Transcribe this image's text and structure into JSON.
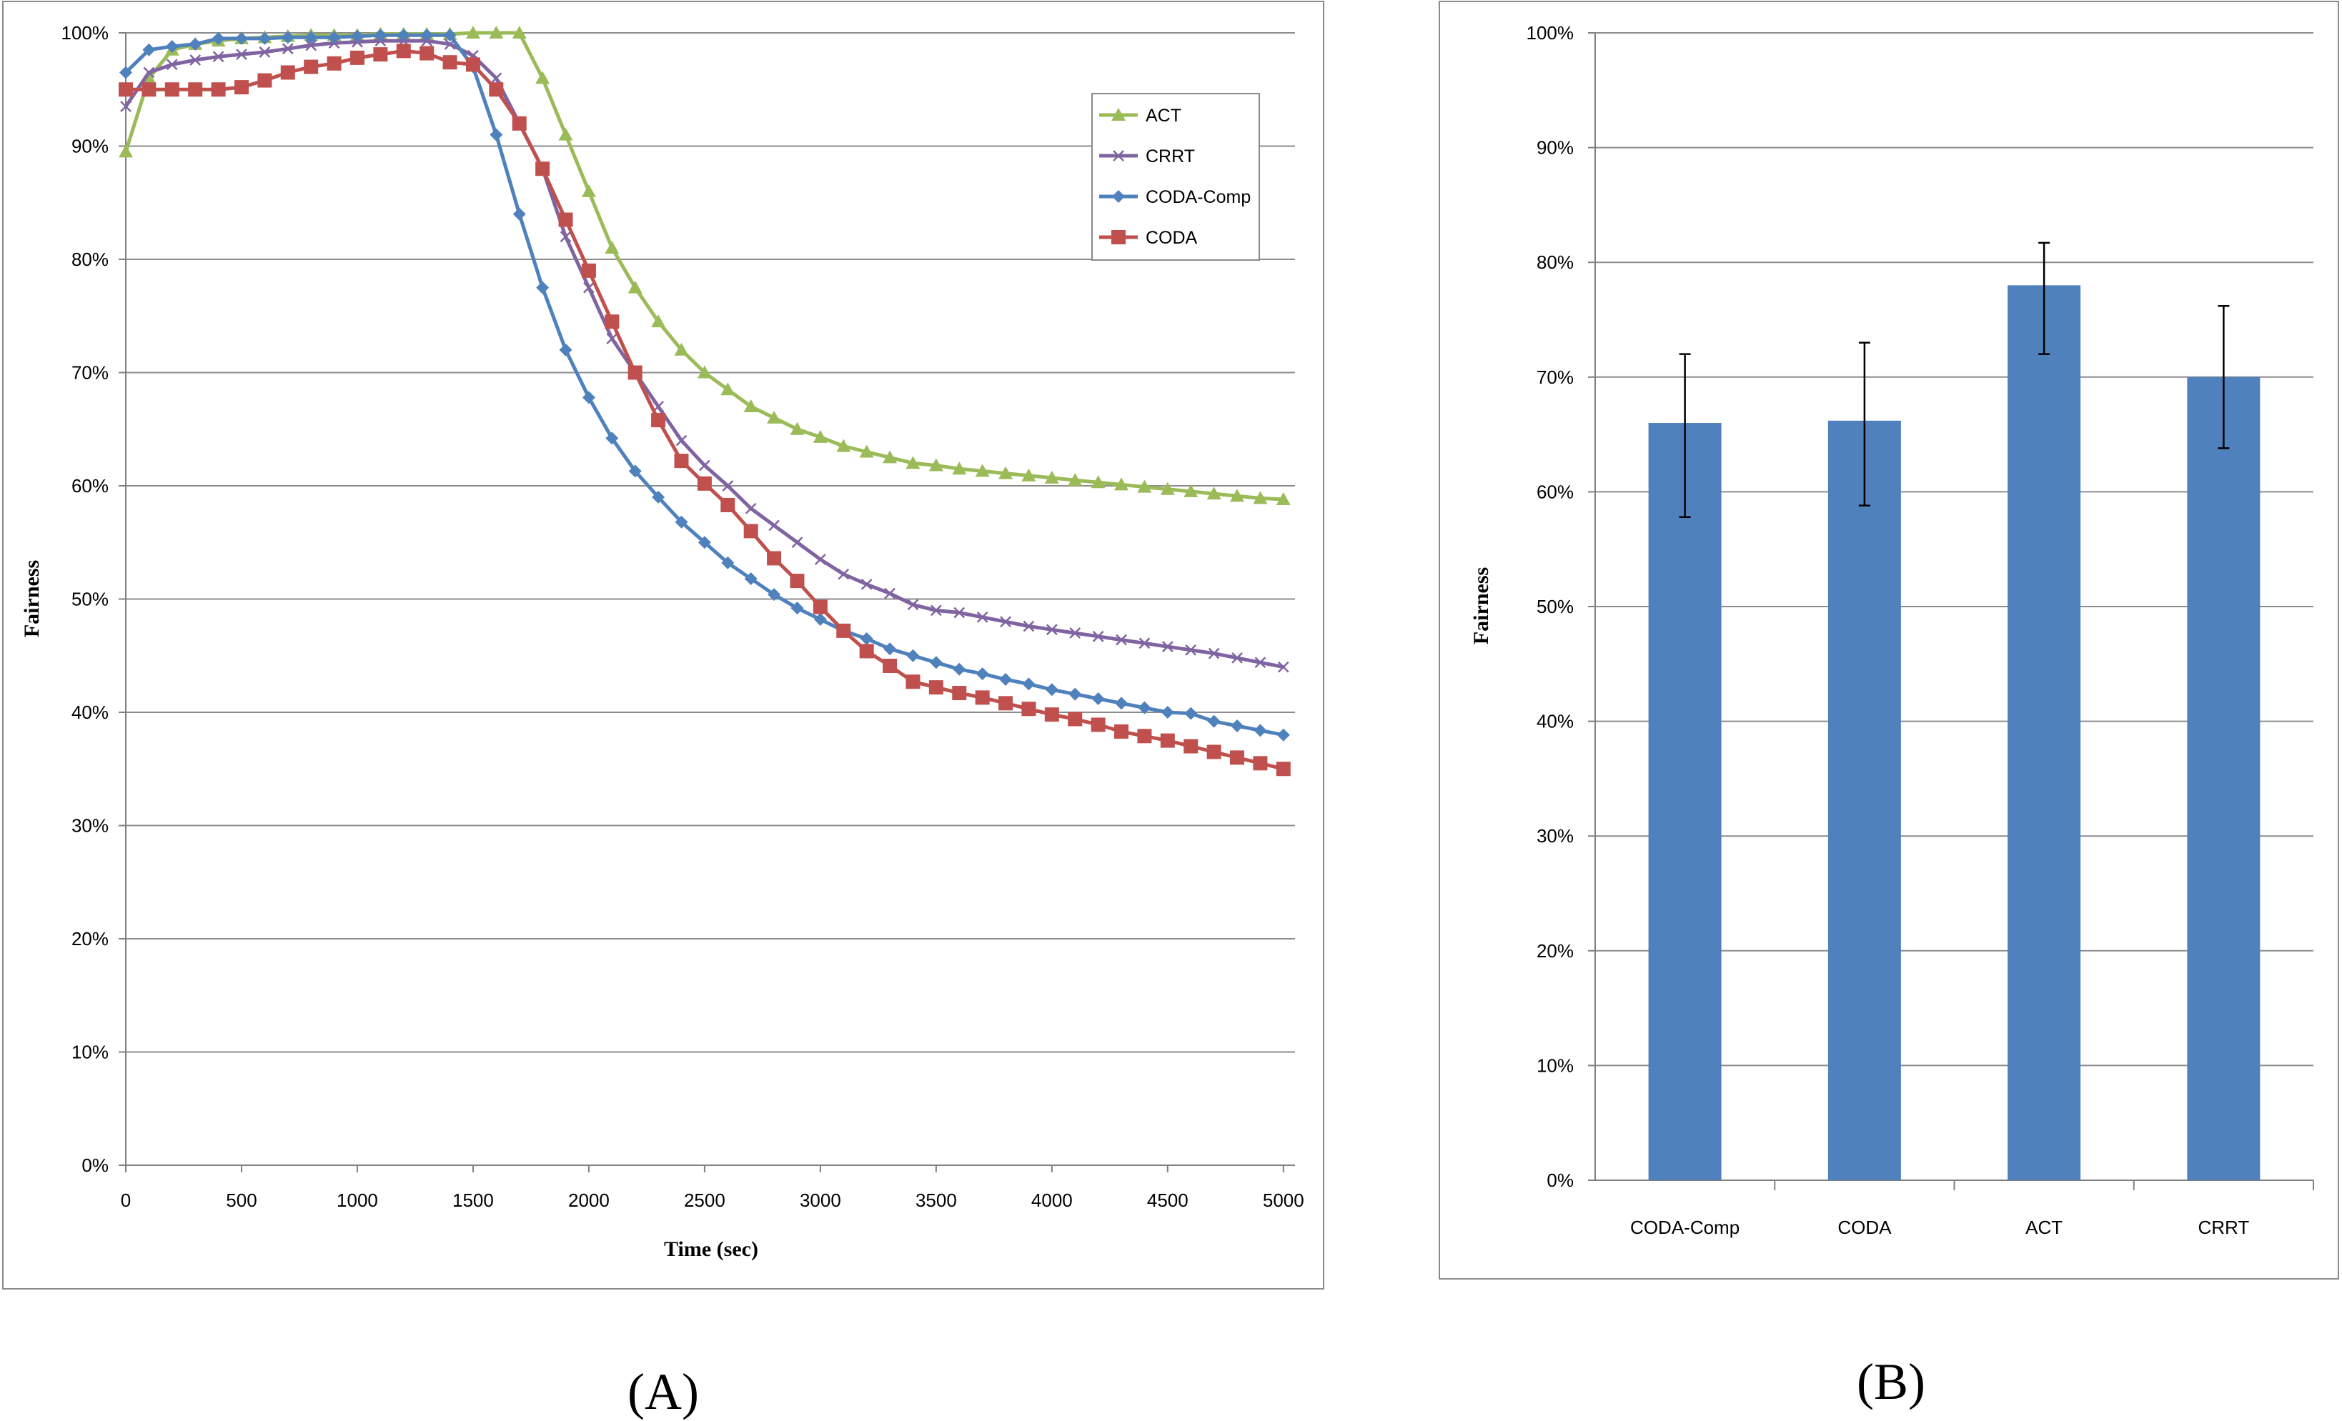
{
  "chart_data": [
    {
      "panel_label": "(A)",
      "type": "line",
      "title": "",
      "xlabel": "Time (sec)",
      "ylabel": "Fairness",
      "xlim": [
        0,
        5050
      ],
      "ylim": [
        0,
        100
      ],
      "x_ticks": [
        "0",
        "500",
        "1000",
        "1500",
        "2000",
        "2500",
        "3000",
        "3500",
        "4000",
        "4500",
        "5000"
      ],
      "y_ticks": [
        "0%",
        "10%",
        "20%",
        "30%",
        "40%",
        "50%",
        "60%",
        "70%",
        "80%",
        "90%",
        "100%"
      ],
      "grid": true,
      "legend": "top-right",
      "series": [
        {
          "name": "ACT",
          "color": "#9BBB59",
          "marker": "triangle",
          "x": [
            0,
            100,
            200,
            300,
            400,
            500,
            600,
            700,
            800,
            900,
            1000,
            1100,
            1200,
            1300,
            1400,
            1500,
            1600,
            1700,
            1800,
            1900,
            2000,
            2100,
            2200,
            2300,
            2400,
            2500,
            2600,
            2700,
            2800,
            2900,
            3000,
            3100,
            3200,
            3300,
            3400,
            3500,
            3600,
            3700,
            3800,
            3900,
            4000,
            4100,
            4200,
            4300,
            4400,
            4500,
            4600,
            4700,
            4800,
            4900,
            5000
          ],
          "y": [
            89.5,
            96,
            98.5,
            99,
            99.3,
            99.5,
            99.6,
            99.7,
            99.8,
            99.8,
            99.8,
            99.9,
            99.9,
            99.9,
            99.9,
            100,
            100,
            100,
            96,
            91,
            86,
            81,
            77.5,
            74.5,
            72,
            70,
            68.5,
            67,
            66,
            65,
            64.3,
            63.5,
            63,
            62.5,
            62,
            61.8,
            61.5,
            61.3,
            61.1,
            60.9,
            60.7,
            60.5,
            60.3,
            60.1,
            59.9,
            59.7,
            59.5,
            59.3,
            59.1,
            58.9,
            58.8
          ]
        },
        {
          "name": "CRRT",
          "color": "#8064A2",
          "marker": "x",
          "x": [
            0,
            100,
            200,
            300,
            400,
            500,
            600,
            700,
            800,
            900,
            1000,
            1100,
            1200,
            1300,
            1400,
            1500,
            1600,
            1700,
            1800,
            1900,
            2000,
            2100,
            2200,
            2300,
            2400,
            2500,
            2600,
            2700,
            2800,
            2900,
            3000,
            3100,
            3200,
            3300,
            3400,
            3500,
            3600,
            3700,
            3800,
            3900,
            4000,
            4100,
            4200,
            4300,
            4400,
            4500,
            4600,
            4700,
            4800,
            4900,
            5000
          ],
          "y": [
            93.5,
            96.5,
            97.2,
            97.6,
            97.9,
            98.1,
            98.3,
            98.6,
            98.9,
            99.1,
            99.2,
            99.3,
            99.3,
            99.3,
            99.0,
            98.0,
            96.0,
            92.0,
            88.0,
            82.0,
            77.5,
            73.0,
            70.0,
            67.0,
            64.0,
            61.8,
            60.0,
            58.0,
            56.5,
            55.0,
            53.5,
            52.2,
            51.3,
            50.5,
            49.5,
            49.0,
            48.8,
            48.4,
            48.0,
            47.6,
            47.3,
            47.0,
            46.7,
            46.4,
            46.1,
            45.8,
            45.5,
            45.2,
            44.8,
            44.4,
            44.0
          ]
        },
        {
          "name": "CODA-Comp",
          "color": "#4F81BD",
          "marker": "diamond",
          "x": [
            0,
            100,
            200,
            300,
            400,
            500,
            600,
            700,
            800,
            900,
            1000,
            1100,
            1200,
            1300,
            1400,
            1500,
            1600,
            1700,
            1800,
            1900,
            2000,
            2100,
            2200,
            2300,
            2400,
            2500,
            2600,
            2700,
            2800,
            2900,
            3000,
            3100,
            3200,
            3300,
            3400,
            3500,
            3600,
            3700,
            3800,
            3900,
            4000,
            4100,
            4200,
            4300,
            4400,
            4500,
            4600,
            4700,
            4800,
            4900,
            5000
          ],
          "y": [
            96.5,
            98.5,
            98.8,
            99.0,
            99.5,
            99.5,
            99.5,
            99.6,
            99.6,
            99.6,
            99.7,
            99.8,
            99.8,
            99.8,
            99.8,
            97.0,
            91.0,
            84.0,
            77.5,
            72.0,
            67.8,
            64.2,
            61.3,
            59.0,
            56.8,
            55.0,
            53.2,
            51.8,
            50.4,
            49.2,
            48.2,
            47.2,
            46.5,
            45.6,
            45.0,
            44.4,
            43.8,
            43.4,
            42.9,
            42.5,
            42.0,
            41.6,
            41.2,
            40.8,
            40.4,
            40.0,
            39.9,
            39.2,
            38.8,
            38.4,
            38.0
          ]
        },
        {
          "name": "CODA",
          "color": "#C0504D",
          "marker": "square",
          "x": [
            0,
            100,
            200,
            300,
            400,
            500,
            600,
            700,
            800,
            900,
            1000,
            1100,
            1200,
            1300,
            1400,
            1500,
            1600,
            1700,
            1800,
            1900,
            2000,
            2100,
            2200,
            2300,
            2400,
            2500,
            2600,
            2700,
            2800,
            2900,
            3000,
            3100,
            3200,
            3300,
            3400,
            3500,
            3600,
            3700,
            3800,
            3900,
            4000,
            4100,
            4200,
            4300,
            4400,
            4500,
            4600,
            4700,
            4800,
            4900,
            5000
          ],
          "y": [
            95,
            95,
            95,
            95,
            95,
            95.2,
            95.8,
            96.5,
            97,
            97.3,
            97.8,
            98.1,
            98.4,
            98.2,
            97.4,
            97.2,
            95,
            92,
            88,
            83.5,
            79,
            74.5,
            70,
            65.8,
            62.2,
            60.2,
            58.3,
            56,
            53.6,
            51.6,
            49.3,
            47.2,
            45.4,
            44.1,
            42.7,
            42.2,
            41.7,
            41.3,
            40.8,
            40.3,
            39.8,
            39.4,
            38.9,
            38.3,
            37.9,
            37.5,
            37,
            36.5,
            36,
            35.5,
            35
          ]
        }
      ]
    },
    {
      "panel_label": "(B)",
      "type": "bar",
      "title": "",
      "xlabel": "",
      "ylabel": "Fairness",
      "ylim": [
        0,
        100
      ],
      "y_ticks": [
        "0%",
        "10%",
        "20%",
        "30%",
        "40%",
        "50%",
        "60%",
        "70%",
        "80%",
        "90%",
        "100%"
      ],
      "categories": [
        "CODA-Comp",
        "CODA",
        "ACT",
        "CRRT"
      ],
      "values": [
        66,
        66.2,
        78,
        70
      ],
      "error_low": [
        57.8,
        58.8,
        72,
        63.8
      ],
      "error_high": [
        72,
        73,
        81.7,
        76.2
      ],
      "color": "#4F81BD",
      "grid": true
    }
  ]
}
